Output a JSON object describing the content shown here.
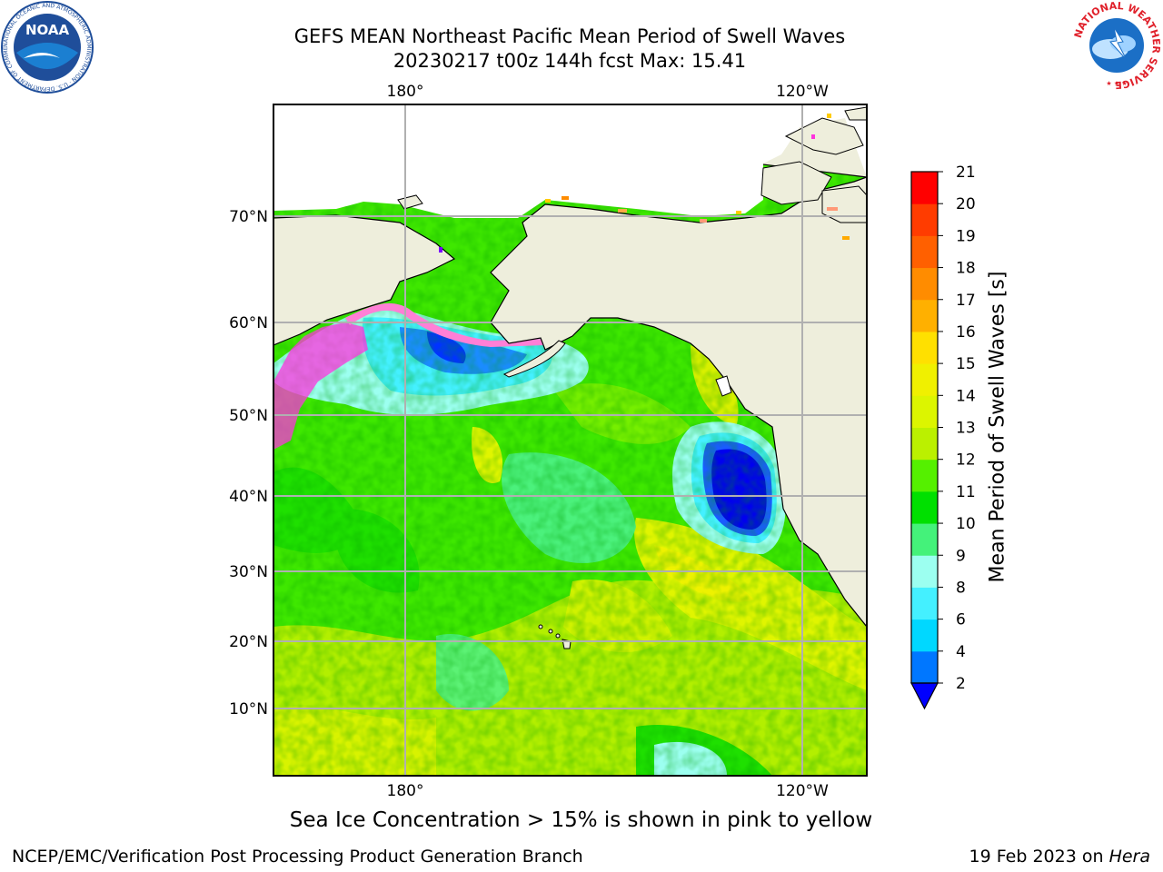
{
  "title": {
    "line1": "GEFS MEAN Northeast Pacific Mean Period of Swell Waves",
    "line2": "20230217 t00z 144h fcst   Max: 15.41"
  },
  "map": {
    "lon_labels_top": [
      "180°",
      "120°W"
    ],
    "lon_labels_bottom": [
      "180°",
      "120°W"
    ],
    "lat_labels": [
      "70°N",
      "60°N",
      "50°N",
      "40°N",
      "30°N",
      "20°N",
      "10°N"
    ]
  },
  "colorbar": {
    "label": "Mean Period of Swell Waves [s]",
    "ticks": [
      "2",
      "4",
      "6",
      "8",
      "9",
      "10",
      "11",
      "12",
      "13",
      "14",
      "15",
      "16",
      "17",
      "18",
      "19",
      "20",
      "21"
    ],
    "colors": [
      "#0033ff",
      "#0077ff",
      "#00d8ff",
      "#44f0ff",
      "#9cfff0",
      "#44f27a",
      "#00e000",
      "#55f000",
      "#bbf000",
      "#dcf500",
      "#f0f000",
      "#ffe000",
      "#ffb000",
      "#ff8c00",
      "#ff6000",
      "#ff3c00",
      "#ff0000"
    ],
    "under_color": "#0000ff"
  },
  "notes": {
    "ice": "Sea Ice Concentration > 15% is shown in pink to yellow",
    "branch": "NCEP/EMC/Verification Post Processing Product Generation Branch",
    "date": "19 Feb 2023 on",
    "machine": "Hera"
  },
  "logos": {
    "noaa_text": "NOAA",
    "noaa_ring": "NATIONAL OCEANIC AND ATMOSPHERIC ADMINISTRATION · U.S. DEPARTMENT OF COMMERCE",
    "nws_ring": "NATIONAL WEATHER SERVICE"
  }
}
